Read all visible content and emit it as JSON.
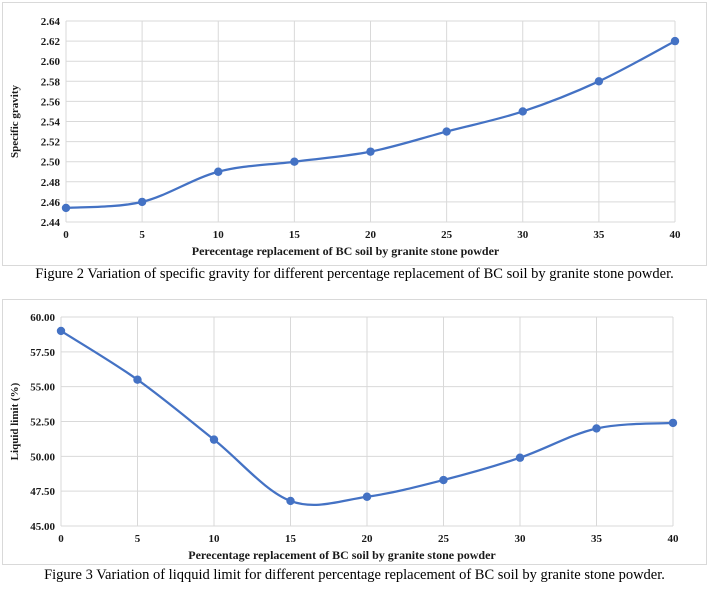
{
  "chart_data": [
    {
      "type": "line",
      "xlabel": "Perecentage replacement of BC soil by granite stone powder",
      "ylabel": "Specific gravity",
      "x": [
        0,
        5,
        10,
        15,
        20,
        25,
        30,
        35,
        40
      ],
      "ylim": [
        2.44,
        2.64
      ],
      "yticks": [
        "2.44",
        "2.46",
        "2.48",
        "2.50",
        "2.52",
        "2.54",
        "2.56",
        "2.58",
        "2.60",
        "2.62",
        "2.64"
      ],
      "series": [
        {
          "values": [
            2.454,
            2.46,
            2.49,
            2.5,
            2.51,
            2.53,
            2.55,
            2.58,
            2.62
          ]
        }
      ],
      "grid": true,
      "color": "#4472c4",
      "caption": "Figure 2 Variation of specific gravity for different percentage replacement of BC soil by granite stone powder."
    },
    {
      "type": "line",
      "xlabel": "Perecentage replacement of BC soil by granite stone powder",
      "ylabel": "Liquid limit (%)",
      "x": [
        0,
        5,
        10,
        15,
        20,
        25,
        30,
        35,
        40
      ],
      "ylim": [
        45,
        60
      ],
      "yticks": [
        "45.00",
        "47.50",
        "50.00",
        "52.50",
        "55.00",
        "57.50",
        "60.00"
      ],
      "series": [
        {
          "values": [
            59.0,
            55.5,
            51.2,
            46.8,
            47.1,
            48.3,
            49.9,
            52.0,
            52.4
          ]
        }
      ],
      "grid": true,
      "color": "#4472c4",
      "caption": "Figure 3 Variation of liqquid limit for different percentage replacement of BC soil by granite stone powder."
    }
  ]
}
